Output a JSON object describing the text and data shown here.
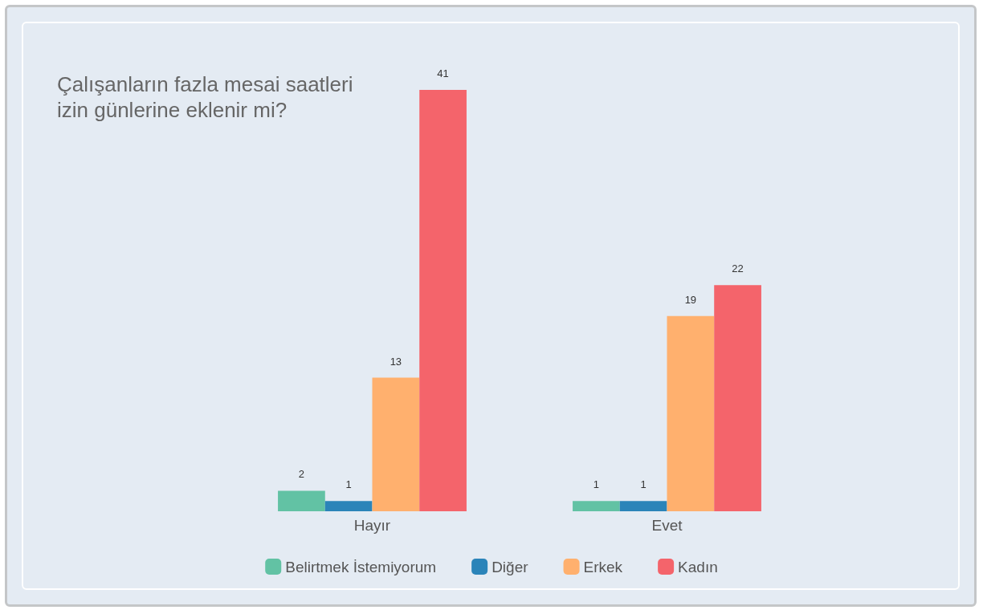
{
  "chart_data": {
    "type": "bar",
    "title": "Çalışanların fazla mesai saatleri\nizin günlerine eklenir mi?",
    "categories": [
      "Hayır",
      "Evet"
    ],
    "series": [
      {
        "name": "Belirtmek İstemiyorum",
        "color": "#62c2a4",
        "values": [
          2,
          1
        ]
      },
      {
        "name": "Diğer",
        "color": "#2b84b9",
        "values": [
          1,
          1
        ]
      },
      {
        "name": "Erkek",
        "color": "#ffb06e",
        "values": [
          13,
          19
        ]
      },
      {
        "name": "Kadın",
        "color": "#f4646b",
        "values": [
          41,
          22
        ]
      }
    ],
    "data_labels": true,
    "legend": "bottom"
  }
}
